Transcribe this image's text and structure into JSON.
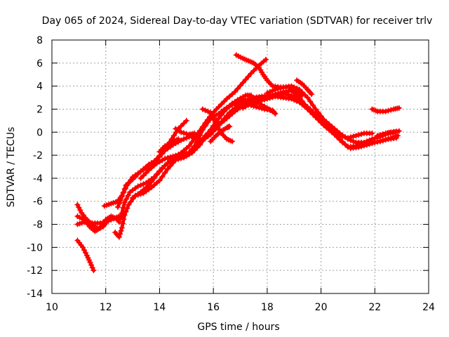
{
  "chart_data": {
    "type": "scatter",
    "title": "Day 065 of 2024, Sidereal Day-to-day VTEC variation (SDTVAR) for receiver trlv",
    "xlabel": "GPS time / hours",
    "ylabel": "SDTVAR / TECUs",
    "xlim": [
      10,
      24
    ],
    "ylim": [
      -14,
      8
    ],
    "xticks": [
      10,
      12,
      14,
      16,
      18,
      20,
      22,
      24
    ],
    "yticks": [
      -14,
      -12,
      -10,
      -8,
      -6,
      -4,
      -2,
      0,
      2,
      4,
      6,
      8
    ],
    "grid": true,
    "legend": "none",
    "series_color": "#ff0000",
    "marker": "plus",
    "series": [
      {
        "name": "track-1",
        "points": [
          [
            10.95,
            -9.4
          ],
          [
            11.15,
            -10.0
          ],
          [
            11.3,
            -10.7
          ],
          [
            11.42,
            -11.3
          ],
          [
            11.55,
            -12.0
          ]
        ]
      },
      {
        "name": "track-2",
        "points": [
          [
            10.95,
            -6.3
          ],
          [
            11.1,
            -7.0
          ],
          [
            11.3,
            -7.6
          ],
          [
            11.5,
            -8.0
          ],
          [
            11.7,
            -8.4
          ],
          [
            11.9,
            -8.2
          ],
          [
            12.0,
            -7.9
          ]
        ]
      },
      {
        "name": "track-3",
        "points": [
          [
            10.95,
            -7.3
          ],
          [
            11.2,
            -7.6
          ],
          [
            11.4,
            -8.2
          ],
          [
            11.6,
            -8.6
          ],
          [
            11.8,
            -8.3
          ],
          [
            12.0,
            -7.6
          ],
          [
            12.2,
            -7.3
          ],
          [
            12.4,
            -7.5
          ],
          [
            12.5,
            -7.8
          ]
        ]
      },
      {
        "name": "track-4",
        "points": [
          [
            10.95,
            -8.0
          ],
          [
            11.2,
            -7.8
          ],
          [
            11.5,
            -7.9
          ],
          [
            11.8,
            -7.9
          ],
          [
            12.1,
            -7.7
          ],
          [
            12.4,
            -7.4
          ],
          [
            12.6,
            -7.2
          ]
        ]
      },
      {
        "name": "track-5",
        "points": [
          [
            11.95,
            -6.4
          ],
          [
            12.2,
            -6.2
          ],
          [
            12.45,
            -6.0
          ],
          [
            12.6,
            -5.5
          ],
          [
            12.8,
            -4.6
          ],
          [
            13.0,
            -3.9
          ],
          [
            13.3,
            -3.4
          ],
          [
            13.6,
            -3.0
          ],
          [
            13.9,
            -2.3
          ],
          [
            14.2,
            -1.5
          ],
          [
            14.45,
            -0.6
          ],
          [
            14.7,
            0.3
          ],
          [
            15.0,
            1.0
          ]
        ]
      },
      {
        "name": "track-6",
        "points": [
          [
            12.35,
            -8.7
          ],
          [
            12.5,
            -9.1
          ],
          [
            12.6,
            -8.3
          ],
          [
            12.7,
            -7.2
          ],
          [
            12.85,
            -6.3
          ],
          [
            13.1,
            -5.5
          ],
          [
            13.4,
            -5.3
          ],
          [
            13.7,
            -4.8
          ],
          [
            14.0,
            -4.2
          ],
          [
            14.3,
            -3.2
          ],
          [
            14.6,
            -2.4
          ],
          [
            14.9,
            -2.2
          ],
          [
            15.2,
            -1.8
          ],
          [
            15.5,
            -1.1
          ],
          [
            15.8,
            -0.1
          ],
          [
            16.1,
            0.9
          ],
          [
            16.4,
            1.8
          ],
          [
            16.7,
            2.5
          ],
          [
            17.0,
            2.5
          ],
          [
            17.3,
            2.4
          ],
          [
            17.6,
            2.2
          ],
          [
            17.9,
            2.0
          ],
          [
            18.2,
            1.9
          ],
          [
            18.3,
            1.6
          ]
        ]
      },
      {
        "name": "track-7",
        "points": [
          [
            12.55,
            -7.5
          ],
          [
            12.7,
            -6.1
          ],
          [
            12.9,
            -5.2
          ],
          [
            13.2,
            -4.7
          ],
          [
            13.5,
            -4.4
          ],
          [
            13.8,
            -3.9
          ],
          [
            14.1,
            -3.1
          ],
          [
            14.4,
            -2.5
          ],
          [
            14.7,
            -2.2
          ],
          [
            15.0,
            -2.0
          ],
          [
            15.3,
            -1.2
          ],
          [
            15.6,
            0.2
          ],
          [
            15.9,
            1.2
          ],
          [
            16.2,
            1.6
          ],
          [
            16.5,
            2.1
          ],
          [
            16.8,
            2.5
          ],
          [
            17.1,
            2.8
          ],
          [
            17.4,
            2.8
          ],
          [
            17.7,
            2.7
          ],
          [
            18.0,
            2.9
          ],
          [
            18.3,
            3.1
          ],
          [
            18.6,
            3.0
          ],
          [
            18.9,
            2.9
          ],
          [
            19.2,
            2.6
          ],
          [
            19.5,
            2.0
          ],
          [
            19.8,
            1.3
          ],
          [
            20.1,
            0.6
          ],
          [
            20.4,
            0.0
          ],
          [
            20.7,
            -0.6
          ],
          [
            21.0,
            -1.3
          ],
          [
            21.3,
            -1.2
          ],
          [
            21.6,
            -1.0
          ],
          [
            21.9,
            -0.9
          ],
          [
            22.2,
            -0.8
          ],
          [
            22.5,
            -0.6
          ],
          [
            22.8,
            -0.5
          ]
        ]
      },
      {
        "name": "track-8",
        "points": [
          [
            12.45,
            -6.5
          ],
          [
            12.6,
            -5.6
          ],
          [
            12.75,
            -4.6
          ],
          [
            13.0,
            -4.1
          ],
          [
            13.3,
            -3.4
          ],
          [
            13.6,
            -2.8
          ],
          [
            13.9,
            -2.4
          ],
          [
            14.2,
            -1.6
          ],
          [
            14.5,
            -1.1
          ],
          [
            14.8,
            -0.7
          ],
          [
            15.1,
            -0.4
          ],
          [
            15.35,
            -0.3
          ],
          [
            15.6,
            -0.7
          ],
          [
            15.9,
            -0.2
          ],
          [
            16.2,
            0.6
          ],
          [
            16.5,
            1.2
          ],
          [
            16.8,
            1.8
          ],
          [
            17.1,
            2.3
          ],
          [
            17.4,
            2.6
          ],
          [
            17.7,
            2.9
          ],
          [
            18.0,
            3.0
          ],
          [
            18.3,
            3.3
          ],
          [
            18.6,
            3.5
          ],
          [
            18.9,
            3.6
          ],
          [
            19.2,
            3.0
          ],
          [
            19.5,
            2.1
          ],
          [
            19.8,
            1.4
          ],
          [
            20.1,
            0.8
          ],
          [
            20.4,
            0.1
          ],
          [
            20.7,
            -0.3
          ],
          [
            21.0,
            -0.5
          ],
          [
            21.3,
            -0.3
          ],
          [
            21.6,
            -0.1
          ],
          [
            21.9,
            -0.1
          ]
        ]
      },
      {
        "name": "track-9",
        "points": [
          [
            13.0,
            -5.7
          ],
          [
            13.3,
            -5.2
          ],
          [
            13.6,
            -4.6
          ],
          [
            13.9,
            -3.7
          ],
          [
            14.2,
            -2.9
          ],
          [
            14.5,
            -2.2
          ],
          [
            14.8,
            -1.8
          ],
          [
            15.1,
            -1.2
          ],
          [
            15.4,
            -0.2
          ],
          [
            15.7,
            0.8
          ],
          [
            15.95,
            1.6
          ],
          [
            16.2,
            2.2
          ],
          [
            16.5,
            2.9
          ],
          [
            16.8,
            3.5
          ],
          [
            17.1,
            4.3
          ],
          [
            17.4,
            5.1
          ],
          [
            17.7,
            5.8
          ],
          [
            17.95,
            6.3
          ]
        ]
      },
      {
        "name": "track-10",
        "points": [
          [
            13.3,
            -4.0
          ],
          [
            13.6,
            -3.3
          ],
          [
            13.9,
            -2.7
          ],
          [
            14.2,
            -2.3
          ],
          [
            14.5,
            -2.1
          ],
          [
            14.8,
            -1.9
          ],
          [
            15.1,
            -1.8
          ],
          [
            15.4,
            -1.2
          ],
          [
            15.7,
            -0.3
          ],
          [
            16.0,
            0.4
          ],
          [
            16.3,
            0.9
          ],
          [
            16.6,
            1.7
          ],
          [
            16.9,
            2.3
          ],
          [
            17.2,
            2.7
          ],
          [
            17.5,
            3.0
          ],
          [
            17.8,
            3.1
          ],
          [
            18.1,
            3.2
          ],
          [
            18.4,
            3.3
          ],
          [
            18.7,
            3.3
          ],
          [
            19.0,
            3.1
          ],
          [
            19.3,
            2.6
          ],
          [
            19.6,
            2.0
          ],
          [
            19.9,
            1.3
          ],
          [
            20.2,
            0.6
          ],
          [
            20.5,
            -0.2
          ],
          [
            20.8,
            -0.9
          ],
          [
            21.1,
            -1.4
          ],
          [
            21.4,
            -1.3
          ],
          [
            21.7,
            -1.1
          ],
          [
            22.0,
            -0.9
          ],
          [
            22.3,
            -0.7
          ],
          [
            22.6,
            -0.5
          ],
          [
            22.85,
            -0.3
          ]
        ]
      },
      {
        "name": "track-11",
        "points": [
          [
            14.0,
            -1.7
          ],
          [
            14.2,
            -1.2
          ],
          [
            14.5,
            -0.8
          ],
          [
            14.7,
            -0.6
          ]
        ]
      },
      {
        "name": "track-12",
        "points": [
          [
            14.6,
            0.3
          ],
          [
            14.8,
            0.0
          ],
          [
            15.1,
            -0.2
          ],
          [
            15.3,
            -0.1
          ]
        ]
      },
      {
        "name": "track-13",
        "points": [
          [
            15.6,
            2.0
          ],
          [
            15.9,
            1.7
          ],
          [
            16.0,
            1.2
          ],
          [
            16.1,
            0.7
          ],
          [
            16.3,
            -0.1
          ],
          [
            16.5,
            -0.6
          ],
          [
            16.7,
            -0.8
          ]
        ]
      },
      {
        "name": "track-14",
        "points": [
          [
            15.9,
            -0.8
          ],
          [
            16.1,
            -0.3
          ],
          [
            16.3,
            0.1
          ],
          [
            16.5,
            0.4
          ],
          [
            16.6,
            0.5
          ]
        ]
      },
      {
        "name": "track-15",
        "points": [
          [
            16.3,
            1.8
          ],
          [
            16.6,
            2.3
          ],
          [
            16.9,
            2.8
          ],
          [
            17.2,
            3.2
          ],
          [
            17.4,
            3.2
          ]
        ]
      },
      {
        "name": "track-16",
        "points": [
          [
            16.85,
            6.7
          ],
          [
            17.1,
            6.4
          ],
          [
            17.3,
            6.2
          ],
          [
            17.5,
            6.0
          ],
          [
            17.7,
            5.6
          ],
          [
            17.85,
            5.0
          ],
          [
            18.0,
            4.5
          ],
          [
            18.2,
            4.0
          ],
          [
            18.5,
            3.9
          ],
          [
            18.8,
            3.9
          ],
          [
            19.1,
            3.6
          ],
          [
            19.3,
            3.2
          ]
        ]
      },
      {
        "name": "track-17",
        "points": [
          [
            17.1,
            2.1
          ],
          [
            17.4,
            2.5
          ],
          [
            17.7,
            2.5
          ],
          [
            18.0,
            2.1
          ],
          [
            18.2,
            1.8
          ]
        ]
      },
      {
        "name": "track-18",
        "points": [
          [
            18.0,
            3.4
          ],
          [
            18.3,
            3.7
          ],
          [
            18.6,
            3.9
          ],
          [
            18.9,
            4.0
          ],
          [
            19.2,
            3.7
          ],
          [
            19.5,
            3.0
          ],
          [
            19.8,
            2.0
          ],
          [
            20.1,
            1.1
          ],
          [
            20.4,
            0.5
          ],
          [
            20.7,
            -0.1
          ],
          [
            21.0,
            -0.6
          ],
          [
            21.3,
            -0.9
          ],
          [
            21.6,
            -0.9
          ],
          [
            21.9,
            -0.6
          ],
          [
            22.2,
            -0.4
          ],
          [
            22.5,
            -0.1
          ],
          [
            22.75,
            0.0
          ]
        ]
      },
      {
        "name": "track-19",
        "points": [
          [
            19.1,
            4.5
          ],
          [
            19.3,
            4.2
          ],
          [
            19.5,
            3.7
          ],
          [
            19.65,
            3.3
          ]
        ]
      },
      {
        "name": "track-20",
        "points": [
          [
            21.9,
            2.0
          ],
          [
            22.1,
            1.8
          ],
          [
            22.4,
            1.8
          ],
          [
            22.7,
            2.0
          ],
          [
            22.9,
            2.1
          ]
        ]
      },
      {
        "name": "track-21",
        "points": [
          [
            22.1,
            -0.3
          ],
          [
            22.4,
            -0.1
          ],
          [
            22.6,
            0.0
          ],
          [
            22.9,
            0.1
          ]
        ]
      }
    ]
  }
}
